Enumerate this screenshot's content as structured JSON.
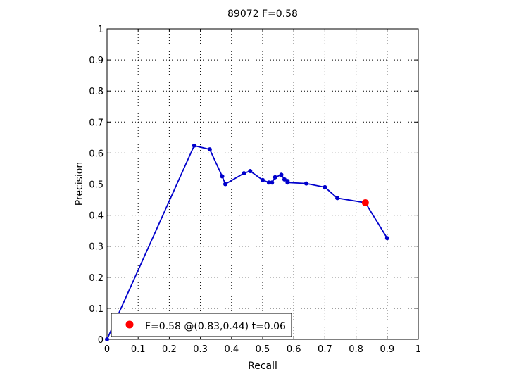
{
  "chart_data": {
    "type": "line",
    "title": "89072 F=0.58",
    "xlabel": "Recall",
    "ylabel": "Precision",
    "xlim": [
      0,
      1
    ],
    "ylim": [
      0,
      1
    ],
    "xticks": [
      "0",
      "0.1",
      "0.2",
      "0.3",
      "0.4",
      "0.5",
      "0.6",
      "0.7",
      "0.8",
      "0.9",
      "1"
    ],
    "yticks": [
      "0",
      "0.1",
      "0.2",
      "0.3",
      "0.4",
      "0.5",
      "0.6",
      "0.7",
      "0.8",
      "0.9",
      "1"
    ],
    "grid": true,
    "series": [
      {
        "color": "#0000cc",
        "marker": "dot",
        "x": [
          0.0,
          0.28,
          0.33,
          0.37,
          0.38,
          0.44,
          0.46,
          0.5,
          0.52,
          0.53,
          0.54,
          0.56,
          0.57,
          0.58,
          0.58,
          0.64,
          0.7,
          0.74,
          0.83,
          0.9
        ],
        "y": [
          0.0,
          0.624,
          0.612,
          0.525,
          0.5,
          0.535,
          0.542,
          0.513,
          0.505,
          0.505,
          0.522,
          0.53,
          0.515,
          0.51,
          0.505,
          0.502,
          0.49,
          0.455,
          0.44,
          0.326
        ]
      }
    ],
    "highlight": {
      "x": 0.83,
      "y": 0.44,
      "color": "#ff0000",
      "label": "F=0.58 @(0.83,0.44) t=0.06"
    },
    "legend": {
      "position": "bottom-left",
      "entries": [
        "F=0.58 @(0.83,0.44) t=0.06"
      ]
    }
  }
}
